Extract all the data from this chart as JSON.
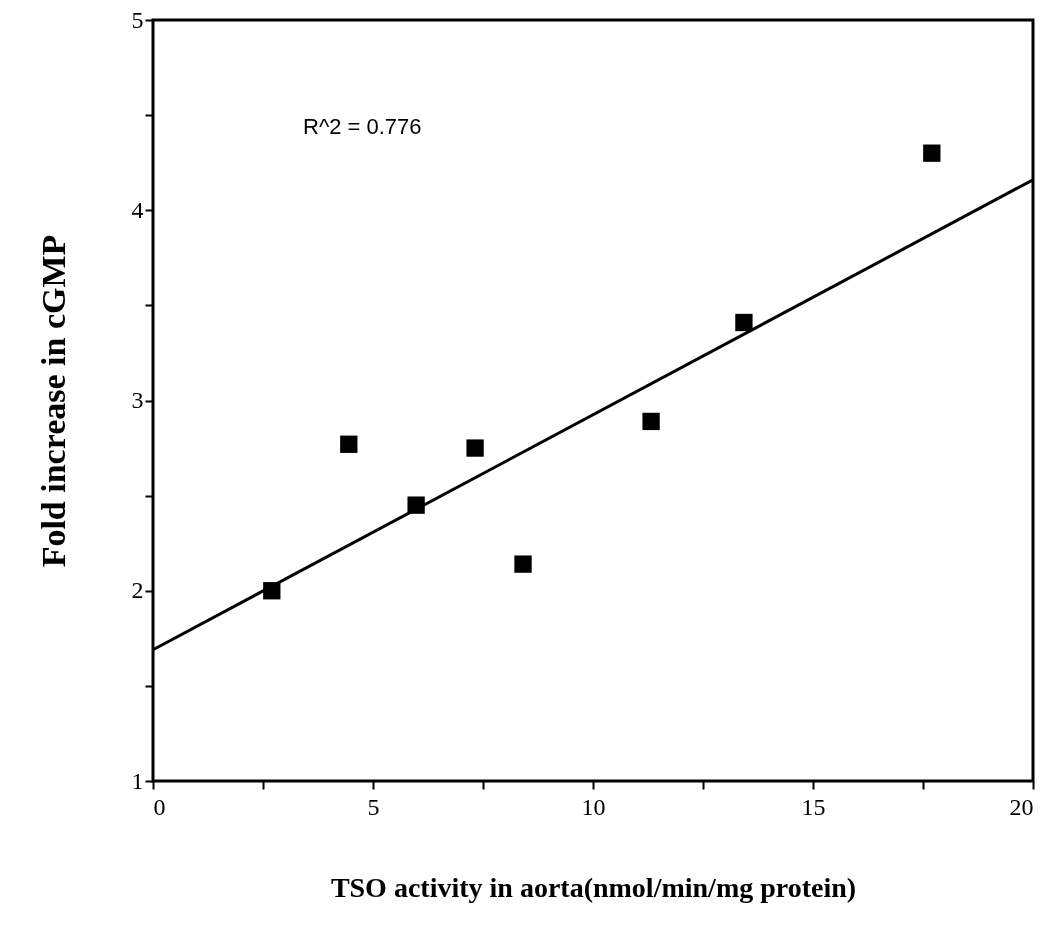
{
  "chart_data": {
    "type": "scatter",
    "xlabel": "TSO activity in aorta(nmol/min/mg protein)",
    "ylabel": "Fold increase in cGMP",
    "xlim": [
      0,
      20
    ],
    "xticks": [
      0,
      {
        "value": 2.5,
        "label": null
      },
      5,
      {
        "value": 7.5,
        "label": null
      },
      10,
      {
        "value": 12.5,
        "label": null
      },
      15,
      {
        "value": 17.5,
        "label": null
      },
      20
    ],
    "ylim": [
      1,
      5
    ],
    "yticks": [
      1,
      {
        "value": 1.5,
        "label": null
      },
      2,
      {
        "value": 2.5,
        "label": null
      },
      3,
      {
        "value": 3.5,
        "label": null
      },
      4,
      {
        "value": 4.5,
        "label": null
      },
      5
    ],
    "grid": false,
    "annotations": [
      "R^2 = 0.776"
    ],
    "series": [
      {
        "marker": "square",
        "color": "#000000",
        "x": [
          2.7,
          4.45,
          5.98,
          7.32,
          8.41,
          11.32,
          13.43,
          17.7
        ],
        "values": [
          2.0,
          2.77,
          2.45,
          2.75,
          2.14,
          2.89,
          3.41,
          4.3
        ]
      },
      {
        "type": "line",
        "color": "#000000",
        "x": [
          0,
          20
        ],
        "values": [
          1.69,
          4.16
        ]
      }
    ]
  }
}
